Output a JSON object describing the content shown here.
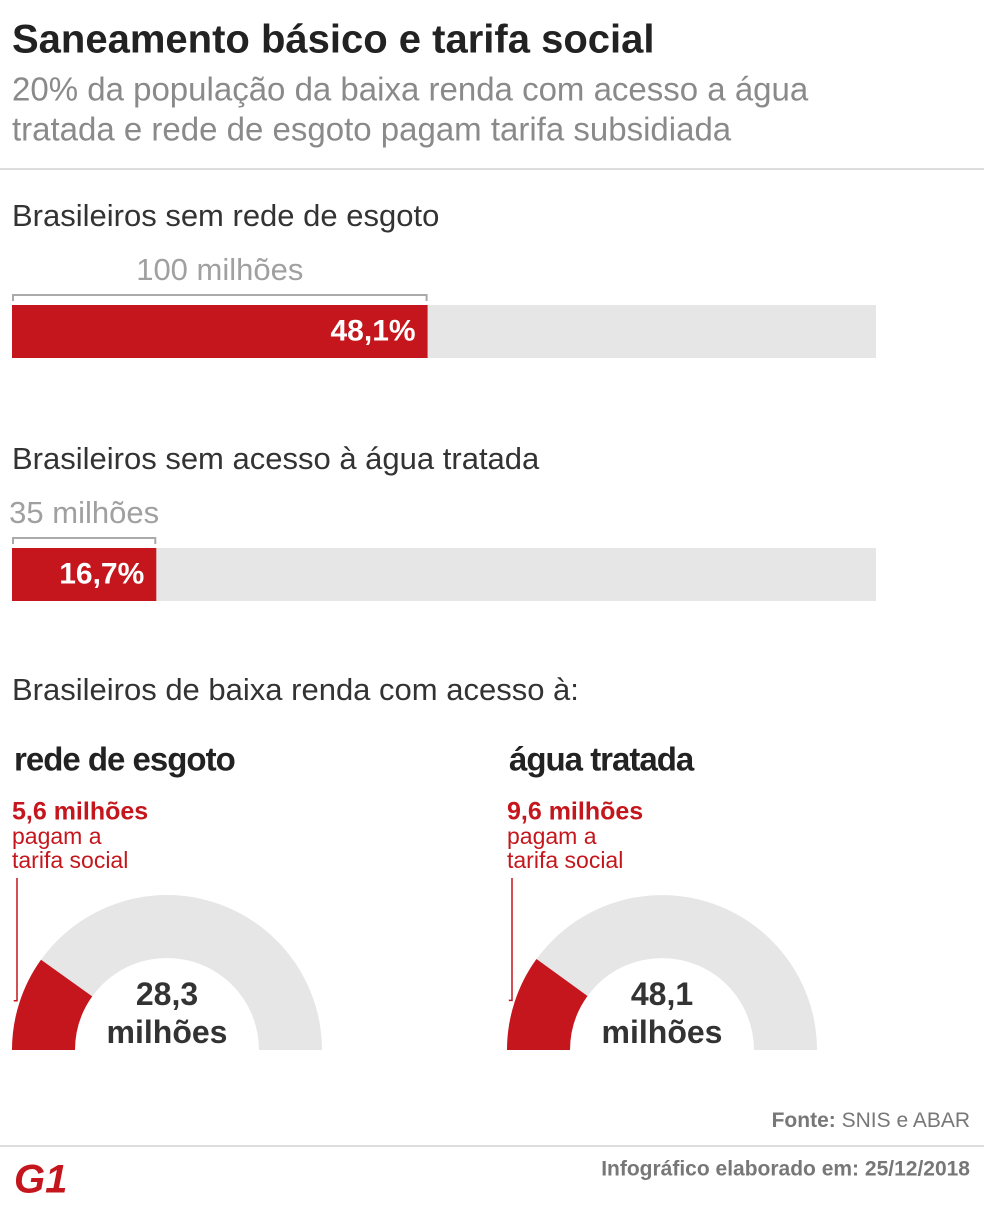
{
  "header": {
    "title": "Saneamento básico e tarifa social",
    "subtitle": [
      "20% da população da baixa renda com acesso a água",
      "tratada e rede de esgoto pagam tarifa subsidiada"
    ]
  },
  "section_title": "Brasileiros de baixa renda com acesso à:",
  "chart_data": [
    {
      "type": "bar",
      "title": "Brasileiros sem rede de esgoto",
      "annotation": "100 milhões",
      "values": [
        48.1
      ],
      "value_labels": [
        "48,1%"
      ],
      "xlim": [
        0,
        100
      ],
      "color": "#c4161c",
      "track_color": "#e6e6e6"
    },
    {
      "type": "bar",
      "title": "Brasileiros sem acesso à água tratada",
      "annotation": "35 milhões",
      "values": [
        16.7
      ],
      "value_labels": [
        "16,7%"
      ],
      "xlim": [
        0,
        100
      ],
      "color": "#c4161c",
      "track_color": "#e6e6e6"
    },
    {
      "type": "semi-donut",
      "title": "rede de esgoto",
      "values": [
        5.6,
        28.3
      ],
      "value_labels": [
        "5,6 milhões",
        "28,3 milhões"
      ],
      "note": [
        "pagam a",
        "tarifa social"
      ],
      "color": "#c4161c",
      "track_color": "#e6e6e6"
    },
    {
      "type": "semi-donut",
      "title": "água tratada",
      "values": [
        9.6,
        48.1
      ],
      "value_labels": [
        "9,6 milhões",
        "48,1 milhões"
      ],
      "note": [
        "pagam a",
        "tarifa social"
      ],
      "color": "#c4161c",
      "track_color": "#e6e6e6"
    }
  ],
  "footer": {
    "source_label": "Fonte:",
    "source": "SNIS e ABAR",
    "credit": "Infográfico elaborado em: 25/12/2018",
    "logo": "G1"
  }
}
